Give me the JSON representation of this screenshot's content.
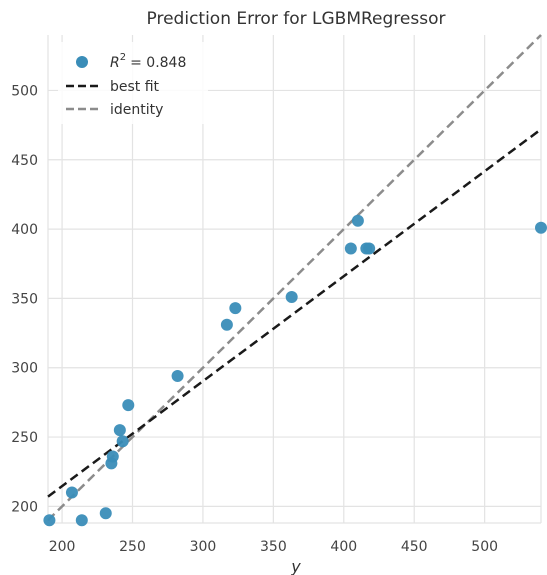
{
  "chart_data": {
    "type": "scatter",
    "title": "Prediction Error for LGBMRegressor",
    "xlabel": "y",
    "ylabel": "",
    "xlim": [
      190,
      540
    ],
    "ylim": [
      188,
      540
    ],
    "xticks": [
      200,
      250,
      300,
      350,
      400,
      450,
      500
    ],
    "yticks": [
      200,
      250,
      300,
      350,
      400,
      450,
      500
    ],
    "grid": true,
    "legend_position": "top-left",
    "legend": {
      "r2_prefix": "R",
      "r2_sup": "2",
      "r2_value": "= 0.848",
      "best_fit": "best fit",
      "identity": "identity"
    },
    "colors": {
      "points": "#3a8db8",
      "best_fit": "#1a1a1a",
      "identity": "#8c8c8c",
      "grid": "#e3e3e3"
    },
    "points": [
      {
        "x": 191,
        "y": 190
      },
      {
        "x": 207,
        "y": 210
      },
      {
        "x": 214,
        "y": 190
      },
      {
        "x": 231,
        "y": 195
      },
      {
        "x": 235,
        "y": 231
      },
      {
        "x": 236,
        "y": 236
      },
      {
        "x": 241,
        "y": 255
      },
      {
        "x": 243,
        "y": 247
      },
      {
        "x": 247,
        "y": 273
      },
      {
        "x": 282,
        "y": 294
      },
      {
        "x": 317,
        "y": 331
      },
      {
        "x": 323,
        "y": 343
      },
      {
        "x": 363,
        "y": 351
      },
      {
        "x": 405,
        "y": 386
      },
      {
        "x": 410,
        "y": 406
      },
      {
        "x": 416,
        "y": 386
      },
      {
        "x": 418,
        "y": 386
      },
      {
        "x": 540,
        "y": 401
      }
    ],
    "best_fit_line": {
      "x": [
        190,
        540
      ],
      "y": [
        207,
        472
      ]
    },
    "identity_line": {
      "x": [
        190,
        540
      ],
      "y": [
        190,
        540
      ]
    }
  }
}
